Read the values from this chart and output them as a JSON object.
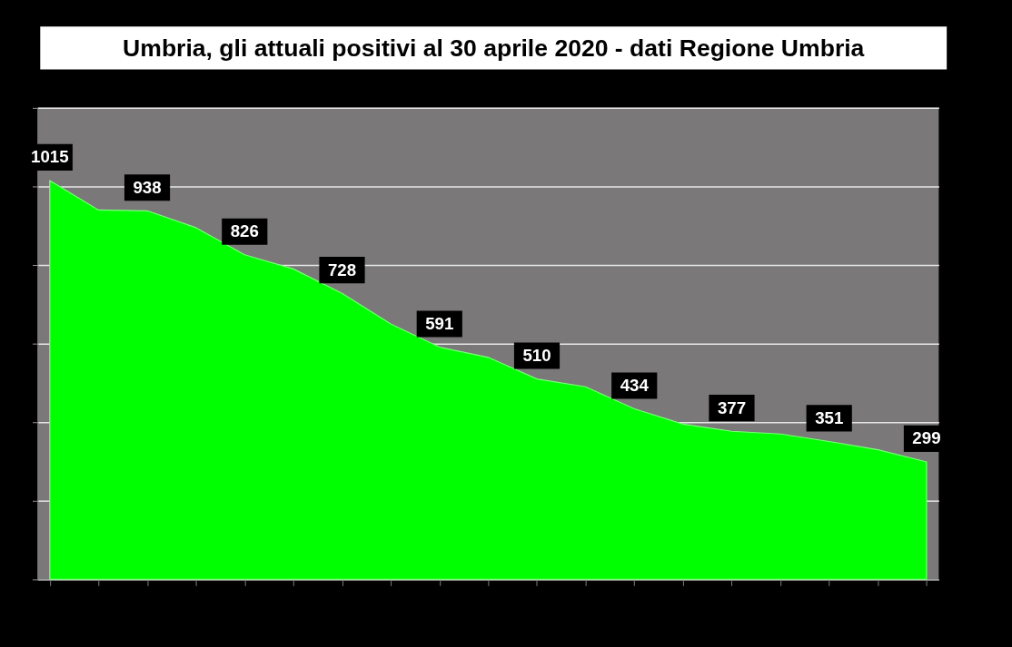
{
  "chart_data": {
    "type": "area",
    "title": "Umbria, gli attuali positivi al 30 aprile 2020 - dati Regione Umbria",
    "categories": [
      null,
      null,
      null,
      null,
      null,
      null,
      null,
      null,
      null,
      null,
      null,
      null,
      null,
      null,
      null,
      null,
      null,
      null,
      null
    ],
    "values": [
      1015,
      940,
      938,
      895,
      826,
      790,
      728,
      650,
      591,
      565,
      510,
      490,
      434,
      395,
      377,
      370,
      351,
      330,
      299
    ],
    "value_labels": [
      "1015",
      null,
      "938",
      null,
      "826",
      null,
      "728",
      null,
      "591",
      null,
      "510",
      null,
      "434",
      null,
      "377",
      null,
      "351",
      null,
      "299"
    ],
    "color": "#00ff00",
    "ylim": [
      0,
      1200
    ],
    "yticks": [
      {
        "value": 0,
        "label": null
      },
      {
        "value": 200,
        "label": null
      },
      {
        "value": 400,
        "label": null
      },
      {
        "value": 600,
        "label": null
      },
      {
        "value": 800,
        "label": null
      },
      {
        "value": 1000,
        "label": null
      },
      {
        "value": 1200,
        "label": null
      }
    ],
    "grid": "y",
    "tick_labels": false
  }
}
